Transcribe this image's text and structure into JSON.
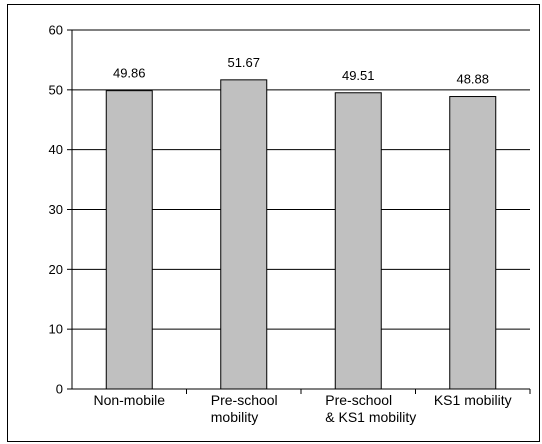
{
  "chart_data": {
    "type": "bar",
    "categories": [
      [
        "Non-mobile"
      ],
      [
        "Pre-school",
        "mobility"
      ],
      [
        "Pre-school",
        "& KS1 mobility"
      ],
      [
        "KS1 mobility"
      ]
    ],
    "values": [
      49.86,
      51.67,
      49.51,
      48.88
    ],
    "data_labels": [
      "49.86",
      "51.67",
      "49.51",
      "48.88"
    ],
    "yticks": [
      "0",
      "10",
      "20",
      "30",
      "40",
      "50",
      "60"
    ],
    "ylim": [
      0,
      60
    ],
    "grid": true,
    "bar_color": "#c0c0c0",
    "bar_edge_color": "#000000",
    "title": "",
    "xlabel": "",
    "ylabel": ""
  }
}
